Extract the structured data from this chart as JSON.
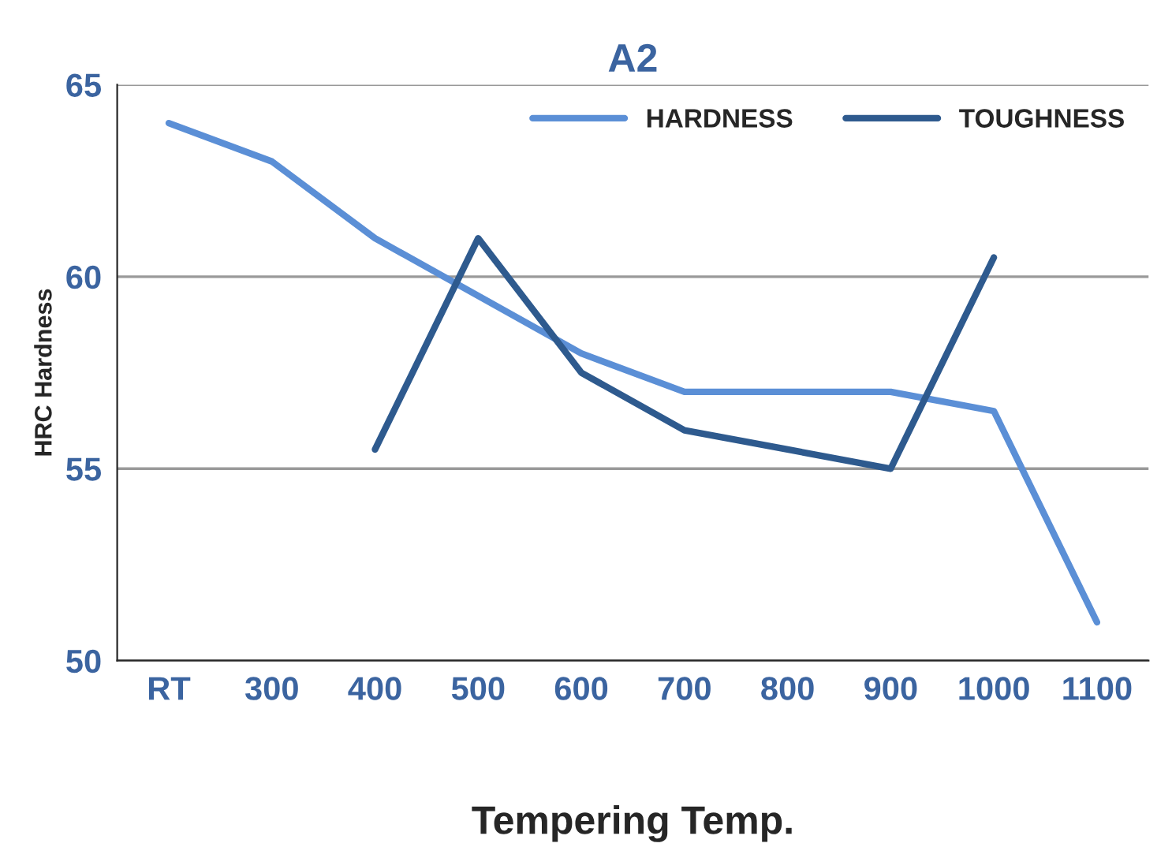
{
  "chart_data": {
    "type": "line",
    "title": "A2",
    "xlabel": "Tempering Temp.",
    "ylabel": "HRC Hardness",
    "categories": [
      "RT",
      "300",
      "400",
      "500",
      "600",
      "700",
      "800",
      "900",
      "1000",
      "1100"
    ],
    "series": [
      {
        "name": "HARDNESS",
        "color": "#5b8fd6",
        "values": [
          64,
          63,
          61,
          59.5,
          58,
          57,
          57,
          57,
          56.5,
          51
        ]
      },
      {
        "name": "TOUGHNESS",
        "color": "#2e5a8e",
        "values": [
          null,
          null,
          55.5,
          61,
          57.5,
          56,
          55.5,
          55,
          60.5,
          null
        ]
      }
    ],
    "ylim": [
      50,
      65
    ],
    "yticks": [
      50,
      55,
      60,
      65
    ],
    "grid": "y",
    "legend": "top right",
    "marker": "none",
    "line_style": "solid"
  }
}
